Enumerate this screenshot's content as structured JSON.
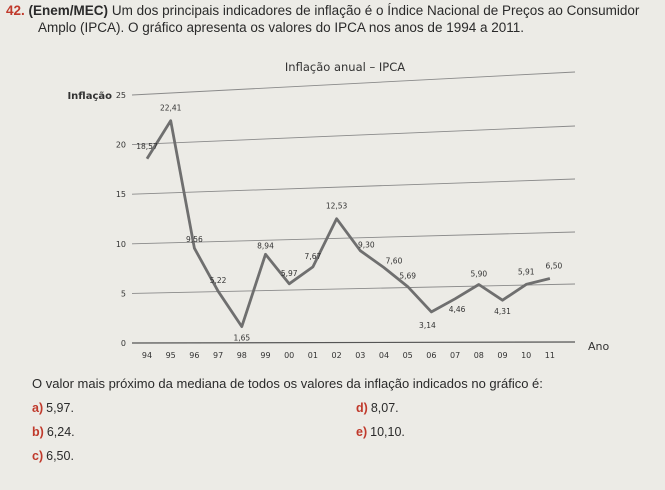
{
  "header": {
    "number": "42.",
    "source": "(Enem/MEC)",
    "text_line1": "Um dos principais indicadores de inflação é o Índice Nacional de Preços ao Consumidor",
    "text_line2": "Amplo (IPCA). O gráfico apresenta os valores do IPCA nos anos de 1994 a 2011."
  },
  "chart_data": {
    "type": "line",
    "title": "Inflação anual – IPCA",
    "ylabel": "Inflação",
    "xlabel": "Ano",
    "ylim": [
      0,
      25
    ],
    "yticks": [
      "0",
      "5",
      "10",
      "15",
      "20",
      "25"
    ],
    "categories": [
      "94",
      "95",
      "96",
      "97",
      "98",
      "99",
      "00",
      "01",
      "02",
      "03",
      "04",
      "05",
      "06",
      "07",
      "08",
      "09",
      "10",
      "11"
    ],
    "values": [
      18.57,
      22.41,
      9.56,
      5.22,
      1.65,
      8.94,
      5.97,
      7.67,
      12.53,
      9.3,
      7.6,
      5.69,
      3.14,
      4.46,
      5.9,
      4.31,
      5.91,
      6.5
    ],
    "labels": [
      "18,57",
      "22,41",
      "9,56",
      "5,22",
      "1,65",
      "8,94",
      "5,97",
      "7,67",
      "12,53",
      "9,30",
      "7,60",
      "5,69",
      "3,14",
      "4,46",
      "5,90",
      "4,31",
      "5,91",
      "6,50"
    ],
    "line_color": "#6f6f6f",
    "grid": true
  },
  "question": "O valor mais próximo da mediana de todos os valores da inflação indicados no gráfico é:",
  "options": [
    {
      "letter": "a)",
      "text": "5,97."
    },
    {
      "letter": "b)",
      "text": "6,24."
    },
    {
      "letter": "c)",
      "text": "6,50."
    },
    {
      "letter": "d)",
      "text": "8,07."
    },
    {
      "letter": "e)",
      "text": "10,10."
    }
  ]
}
